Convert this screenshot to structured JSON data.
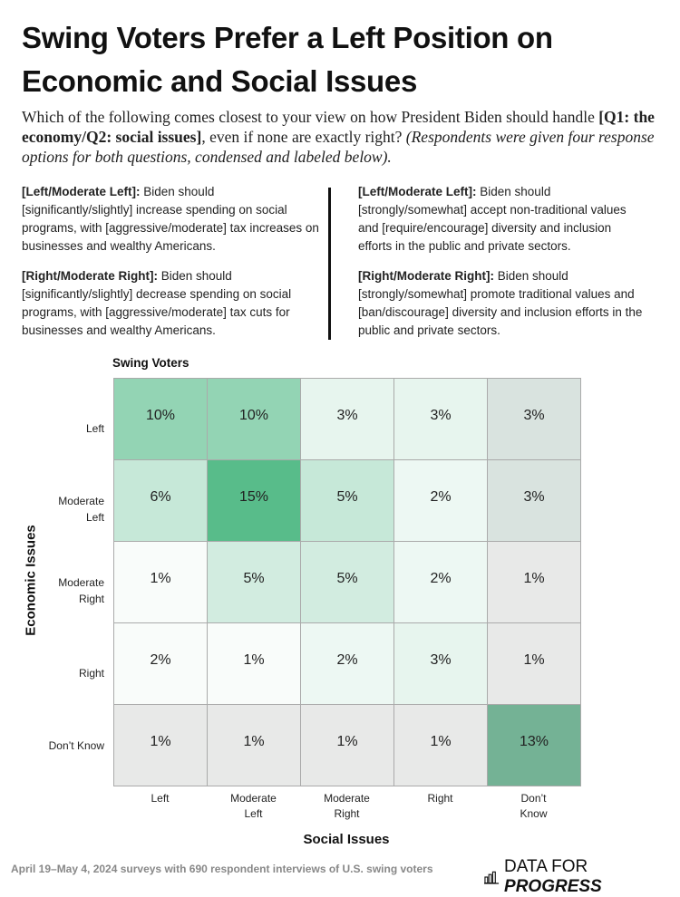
{
  "title": "Swing Voters Prefer a Left Position on Economic and Social Issues",
  "subtitle": {
    "part1": "Which of the following comes closest to your view on how President Biden should handle ",
    "bold": "[Q1: the economy/Q2: social issues]",
    "part2": ", even if none are exactly right? ",
    "italic": "(Respondents were given four response options for both questions, condensed and labeled below)."
  },
  "definitions": {
    "economic": [
      {
        "label": "Left/Moderate Left",
        "text": " Biden should [significantly/slightly] increase spending on social programs, with [aggressive/moderate] tax increases on businesses and wealthy Americans."
      },
      {
        "label": "Right/Moderate Right",
        "text": " Biden should [significantly/slightly] decrease spending on social programs, with [aggressive/moderate] tax cuts for businesses and wealthy Americans."
      }
    ],
    "social": [
      {
        "label": "Left/Moderate Left",
        "text": " Biden should [strongly/somewhat] accept non-traditional values and [require/encourage] diversity and inclusion efforts in the public and private sectors."
      },
      {
        "label": "Right/Moderate Right",
        "text": " Biden should [strongly/somewhat] promote traditional values and [ban/discourage] diversity and inclusion efforts in the public and private sectors."
      }
    ]
  },
  "chart_data": {
    "type": "heatmap",
    "title": "Swing Voters",
    "xlabel": "Social Issues",
    "ylabel": "Economic Issues",
    "x_categories": [
      "Left",
      "Moderate Left",
      "Moderate Right",
      "Right",
      "Don’t Know"
    ],
    "y_categories": [
      "Left",
      "Moderate Left",
      "Moderate Right",
      "Right",
      "Don’t Know"
    ],
    "values": [
      [
        10,
        10,
        3,
        3,
        3
      ],
      [
        6,
        15,
        5,
        2,
        3
      ],
      [
        1,
        5,
        5,
        2,
        1
      ],
      [
        2,
        1,
        2,
        3,
        1
      ],
      [
        1,
        1,
        1,
        1,
        13
      ]
    ],
    "unit": "%",
    "colors": [
      [
        "#93d4b4",
        "#93d4b4",
        "#e7f5ee",
        "#e7f5ee",
        "#d9e3df"
      ],
      [
        "#c6e8d8",
        "#58bc8a",
        "#c6e8d8",
        "#edf8f3",
        "#d9e3df"
      ],
      [
        "#f9fcfa",
        "#d2ece0",
        "#d2ece0",
        "#edf8f3",
        "#e8e9e8"
      ],
      [
        "#f9fcfa",
        "#f9fcfa",
        "#edf8f3",
        "#e7f5ee",
        "#e8e9e8"
      ],
      [
        "#e8e9e8",
        "#e8e9e8",
        "#e8e9e8",
        "#e8e9e8",
        "#74b295"
      ]
    ]
  },
  "footer": {
    "source": "April 19–May 4, 2024 surveys with 690 respondent interviews of U.S. swing voters",
    "logo_plain": "DATA FOR ",
    "logo_bold": "PROGRESS"
  }
}
